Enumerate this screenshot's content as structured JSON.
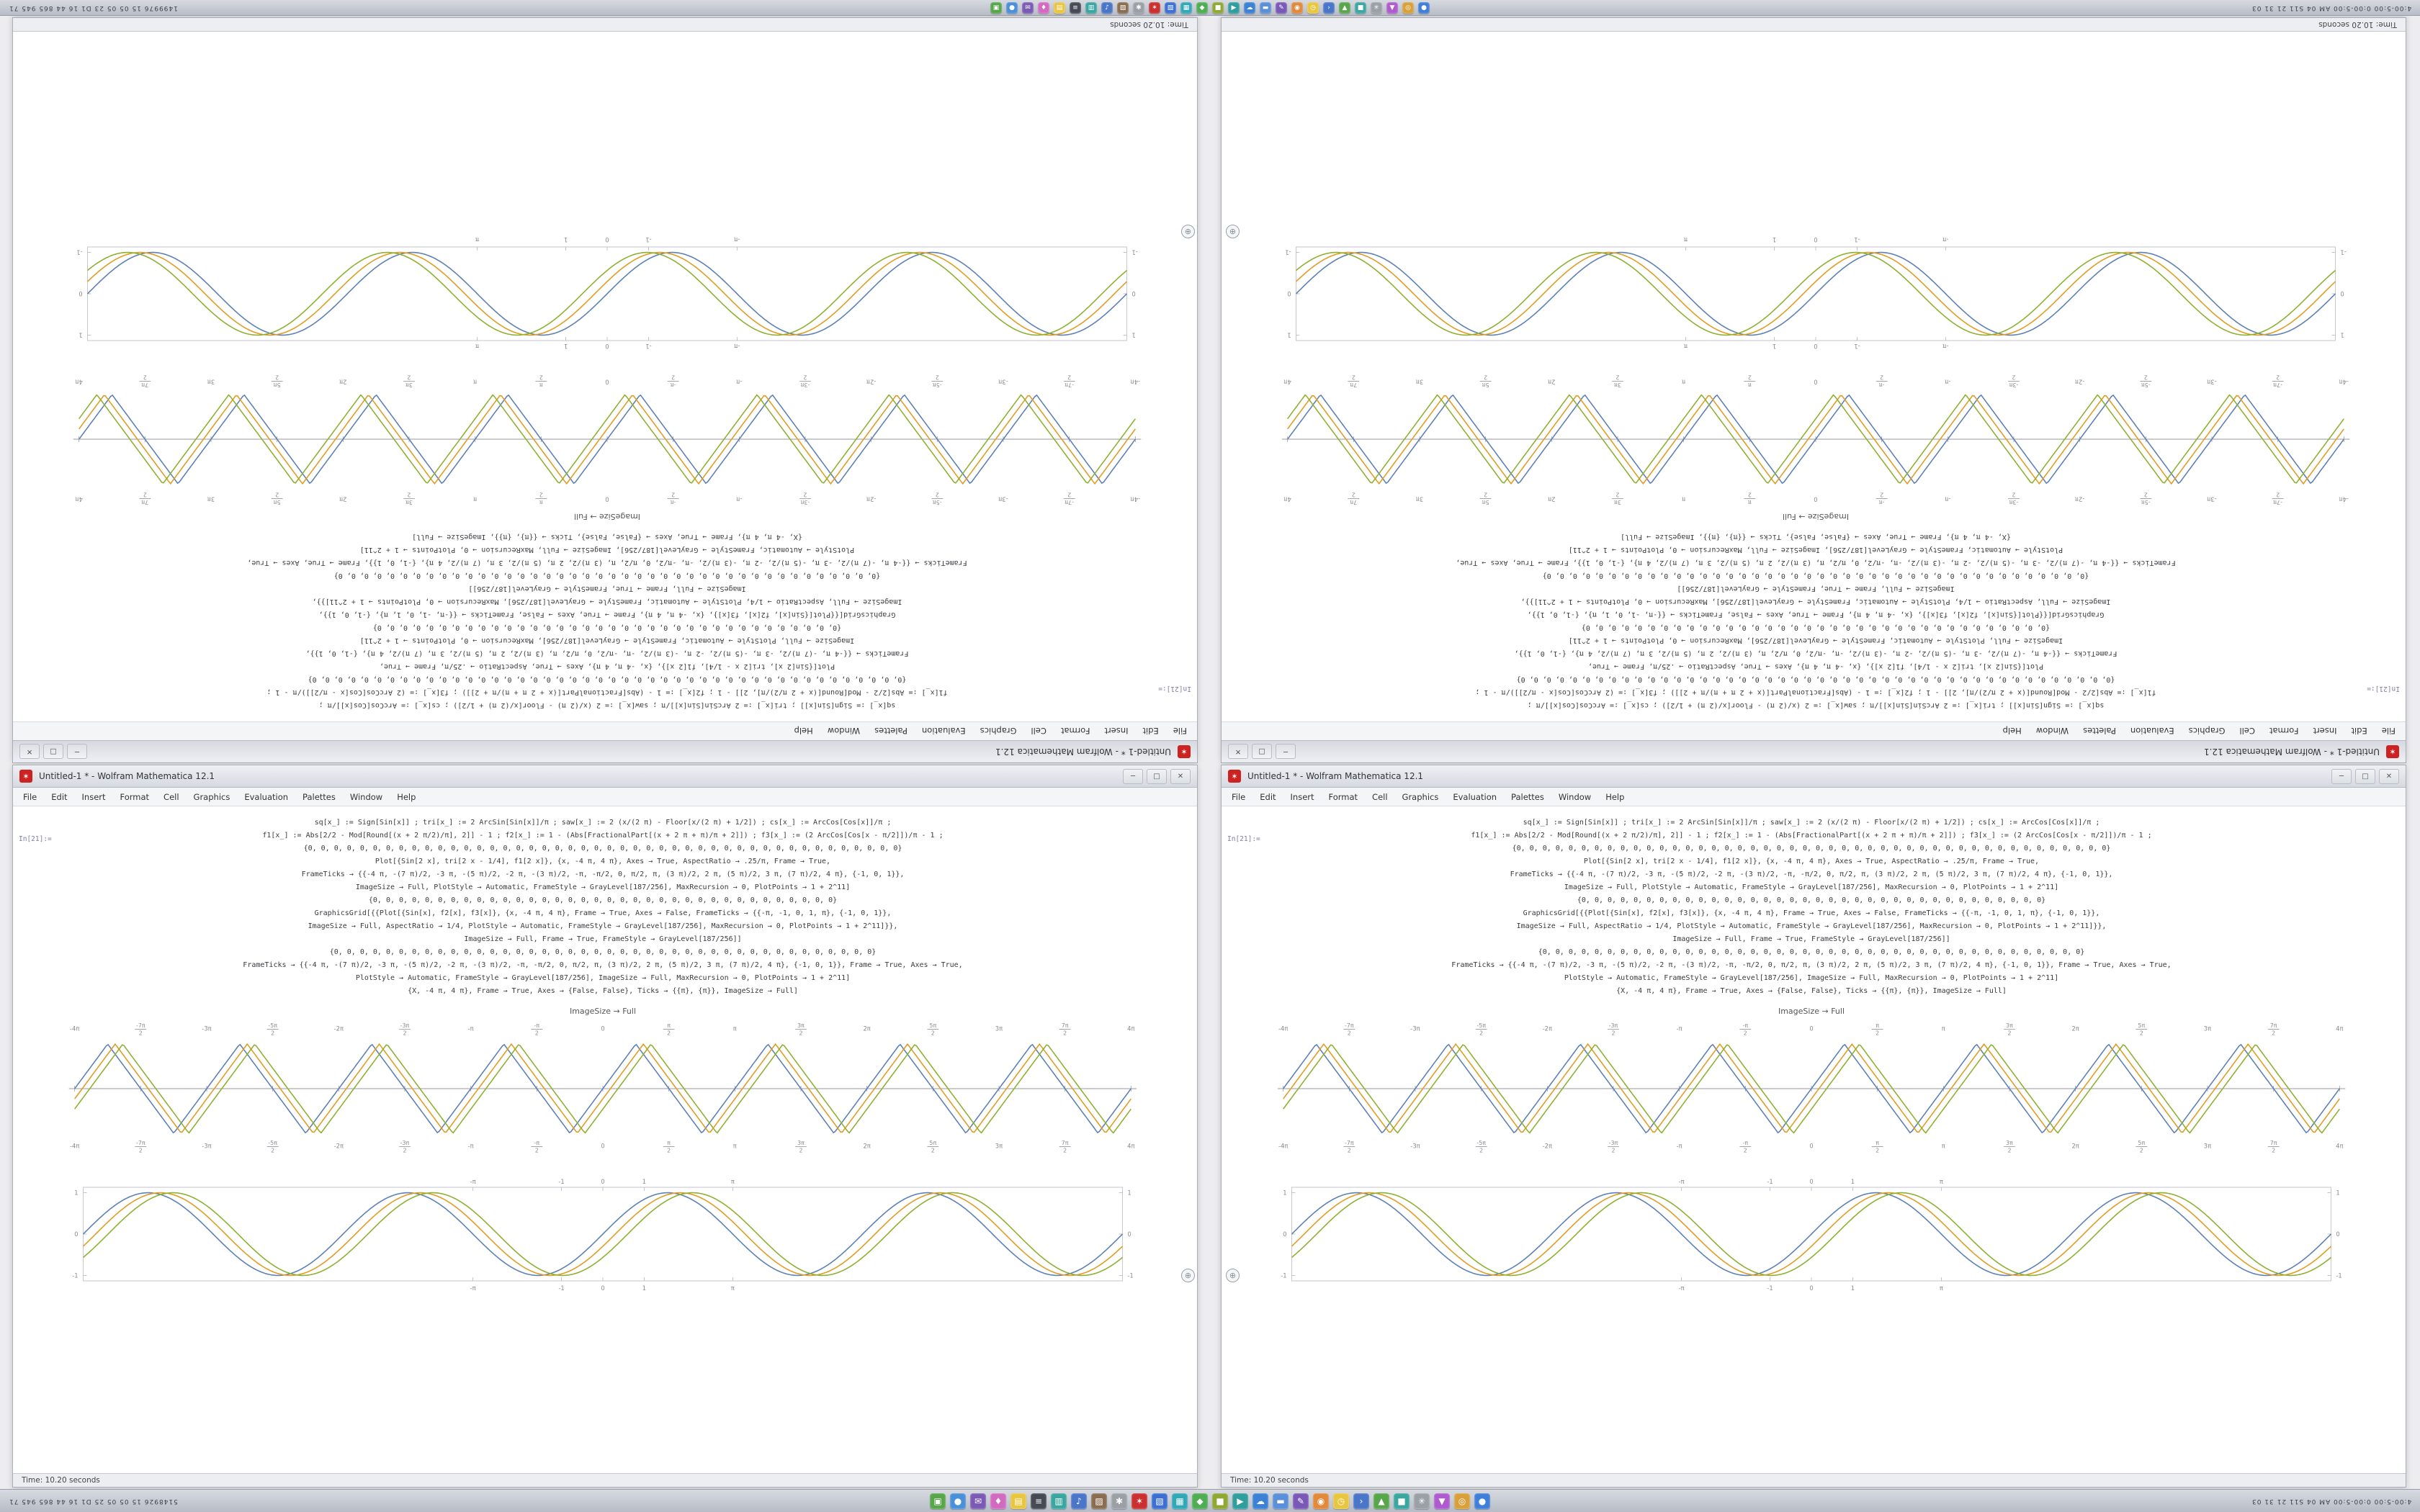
{
  "desktop": {
    "background": "#ededf0"
  },
  "status_text": "Time: 10.20 seconds",
  "insert_button_glyph": "⊕",
  "taskbars": {
    "top": {
      "left_text": "1499976  15 05 05 23  D1 16 44  865 945 71",
      "right_text": "4:00-5:00  0:00-5:00  AM 04  S11 21 31 03"
    },
    "bottom": {
      "left_text": "5148926  15 05 05 25  D1 16 44  865 945 71",
      "right_text": "4:00-5:00  0:00-5:00  AM 04  S11 21 31 03"
    },
    "icon_set": [
      {
        "name": "launcher-icon",
        "color": "#57a64a",
        "glyph": "▣"
      },
      {
        "name": "browser-icon",
        "color": "#4a90d9",
        "glyph": "●"
      },
      {
        "name": "mail-icon",
        "color": "#7b5ab5",
        "glyph": "✉"
      },
      {
        "name": "chat-icon",
        "color": "#d36ac2",
        "glyph": "♦"
      },
      {
        "name": "notes-icon",
        "color": "#e8c63f",
        "glyph": "▤"
      },
      {
        "name": "terminal-icon",
        "color": "#454a54",
        "glyph": "≡"
      },
      {
        "name": "files-icon",
        "color": "#3aa6a0",
        "glyph": "▥"
      },
      {
        "name": "music-icon",
        "color": "#4a76c9",
        "glyph": "♪"
      },
      {
        "name": "photos-icon",
        "color": "#8a6d4f",
        "glyph": "▨"
      },
      {
        "name": "settings-icon",
        "color": "#9aa0a6",
        "glyph": "✱"
      },
      {
        "name": "mathematica-icon",
        "color": "#cc2f2f",
        "glyph": "✶"
      },
      {
        "name": "editor-icon",
        "color": "#3b6fd4",
        "glyph": "▧"
      },
      {
        "name": "calendar-icon",
        "color": "#2fa8b8",
        "glyph": "▦"
      },
      {
        "name": "store-icon",
        "color": "#4fae54",
        "glyph": "◆"
      },
      {
        "name": "archive-icon",
        "color": "#8fa832",
        "glyph": "■"
      },
      {
        "name": "video-icon",
        "color": "#2f9e9e",
        "glyph": "▶"
      },
      {
        "name": "cloud-icon",
        "color": "#3b82d6",
        "glyph": "☁"
      },
      {
        "name": "docs-icon",
        "color": "#5a8fd9",
        "glyph": "▬"
      },
      {
        "name": "paint-icon",
        "color": "#7a58b8",
        "glyph": "✎"
      },
      {
        "name": "maps-icon",
        "color": "#e2893a",
        "glyph": "◉"
      },
      {
        "name": "clock-icon",
        "color": "#e8c63f",
        "glyph": "◷"
      },
      {
        "name": "code-icon",
        "color": "#4a76c9",
        "glyph": "›"
      },
      {
        "name": "games-icon",
        "color": "#57a64a",
        "glyph": "▲"
      },
      {
        "name": "office-icon",
        "color": "#3aa6a0",
        "glyph": "■"
      },
      {
        "name": "system-icon",
        "color": "#9aa0a6",
        "glyph": "✳"
      },
      {
        "name": "download-icon",
        "color": "#b05ad0",
        "glyph": "▼"
      },
      {
        "name": "camera-icon",
        "color": "#d9a03a",
        "glyph": "◎"
      },
      {
        "name": "network-icon",
        "color": "#3f7fd9",
        "glyph": "●"
      }
    ]
  },
  "window": {
    "title": "Untitled-1 * - Wolfram Mathematica 12.1",
    "icon_glyph": "✶",
    "buttons": {
      "min": "─",
      "max": "□",
      "close": "✕"
    },
    "menu_items": [
      "File",
      "Edit",
      "Insert",
      "Format",
      "Cell",
      "Graphics",
      "Evaluation",
      "Palettes",
      "Window",
      "Help"
    ],
    "in_label": "In[21]:=",
    "caption": "ImageSize → Full",
    "code_lines": [
      "sq[x_] := Sign[Sin[x]] ; tri[x_] := 2 ArcSin[Sin[x]]/π ; saw[x_] := 2 (x/(2 π) - Floor[x/(2 π) + 1/2]) ; cs[x_] := ArcCos[Cos[x]]/π ;",
      "f1[x_] := Abs[2/2 - Mod[Round[(x + 2 π/2)/π], 2]] - 1 ; f2[x_] := 1 - (Abs[FractionalPart[(x + 2 π + π)/π + 2]]) ; f3[x_] := (2 ArcCos[Cos[x - π/2]])/π - 1 ;",
      "{0, 0, 0, 0, 0, 0, 0, 0, 0, 0, 0, 0, 0, 0, 0, 0, 0, 0, 0, 0, 0, 0, 0, 0, 0, 0, 0, 0, 0, 0, 0, 0, 0, 0, 0, 0, 0, 0, 0, 0, 0, 0, 0, 0, 0, 0}",
      "Plot[{Sin[2 x], tri[2 x - 1/4], f1[2 x]}, {x, -4 π, 4 π}, Axes → True, AspectRatio → .25/π, Frame → True,",
      "FrameTicks → {{-4 π, -(7 π)/2, -3 π, -(5 π)/2, -2 π, -(3 π)/2, -π, -π/2, 0, π/2, π, (3 π)/2, 2 π, (5 π)/2, 3 π, (7 π)/2, 4 π}, {-1, 0, 1}},",
      "ImageSize → Full, PlotStyle → Automatic, FrameStyle → GrayLevel[187/256], MaxRecursion → 0, PlotPoints → 1 + 2^11]",
      "{0, 0, 0, 0, 0, 0, 0, 0, 0, 0, 0, 0, 0, 0, 0, 0, 0, 0, 0, 0, 0, 0, 0, 0, 0, 0, 0, 0, 0, 0, 0, 0, 0, 0, 0, 0}",
      "GraphicsGrid[{{Plot[{Sin[x], f2[x], f3[x]}, {x, -4 π, 4 π}, Frame → True, Axes → False, FrameTicks → {{-π, -1, 0, 1, π}, {-1, 0, 1}},",
      "ImageSize → Full, AspectRatio → 1/4, PlotStyle → Automatic, FrameStyle → GrayLevel[187/256], MaxRecursion → 0, PlotPoints → 1 + 2^11]}},",
      "ImageSize → Full, Frame → True, FrameStyle → GrayLevel[187/256]]",
      "{0, 0, 0, 0, 0, 0, 0, 0, 0, 0, 0, 0, 0, 0, 0, 0, 0, 0, 0, 0, 0, 0, 0, 0, 0, 0, 0, 0, 0, 0, 0, 0, 0, 0, 0, 0, 0, 0, 0, 0, 0, 0}",
      "FrameTicks → {{-4 π, -(7 π)/2, -3 π, -(5 π)/2, -2 π, -(3 π)/2, -π, -π/2, 0, π/2, π, (3 π)/2, 2 π, (5 π)/2, 3 π, (7 π)/2, 4 π}, {-1, 0, 1}}, Frame → True, Axes → True,",
      "PlotStyle → Automatic, FrameStyle → GrayLevel[187/256], ImageSize → Full, MaxRecursion → 0, PlotPoints → 1 + 2^11]",
      "{X, -4 π, 4 π}, Frame → True, Axes → {False, False}, Ticks → {{π}, {π}}, ImageSize → Full]"
    ]
  },
  "chart_data": [
    {
      "id": "triangle-wave-plot",
      "type": "line",
      "x_range": [
        -12.566,
        12.566
      ],
      "y_range": [
        -1.05,
        1.05
      ],
      "frame": false,
      "axes": true,
      "x_tick_labels": [
        "-4π",
        "-7π/2",
        "-3π",
        "-5π/2",
        "-2π",
        "-3π/2",
        "-π",
        "-π/2",
        "0",
        "π/2",
        "π",
        "3π/2",
        "2π",
        "5π/2",
        "3π",
        "7π/2",
        "4π"
      ],
      "y_tick_labels": [
        "-1",
        "0",
        "1"
      ],
      "series": [
        {
          "name": "Sin[2x]",
          "shape": "triangle",
          "period": 3.14159,
          "phase": 0,
          "color": "#5e81b5"
        },
        {
          "name": "tri[2x - 1/4]",
          "shape": "triangle",
          "period": 3.14159,
          "phase": 0.18,
          "color": "#e19c24"
        },
        {
          "name": "f1[2x]",
          "shape": "triangle",
          "period": 3.14159,
          "phase": 0.36,
          "color": "#8fb032"
        }
      ]
    },
    {
      "id": "sine-wave-plot",
      "type": "line",
      "x_range": [
        -12.566,
        12.566
      ],
      "y_range": [
        -1.08,
        1.08
      ],
      "frame": true,
      "axes": false,
      "x_tick_values": [
        -3.14159,
        -1,
        0,
        1,
        3.14159
      ],
      "x_tick_labels": [
        "-π",
        "-1",
        "0",
        "1",
        "π"
      ],
      "y_tick_values": [
        -1,
        0,
        1
      ],
      "y_tick_labels": [
        "-1",
        "0",
        "1"
      ],
      "series": [
        {
          "name": "Sin[x]",
          "shape": "sine",
          "period": 6.28319,
          "phase": 0,
          "color": "#5e81b5"
        },
        {
          "name": "f2[x]",
          "shape": "sine",
          "period": 6.28319,
          "phase": 0.3,
          "color": "#e19c24"
        },
        {
          "name": "f3[x]",
          "shape": "sine",
          "period": 6.28319,
          "phase": 0.6,
          "color": "#8fb032"
        }
      ]
    }
  ]
}
